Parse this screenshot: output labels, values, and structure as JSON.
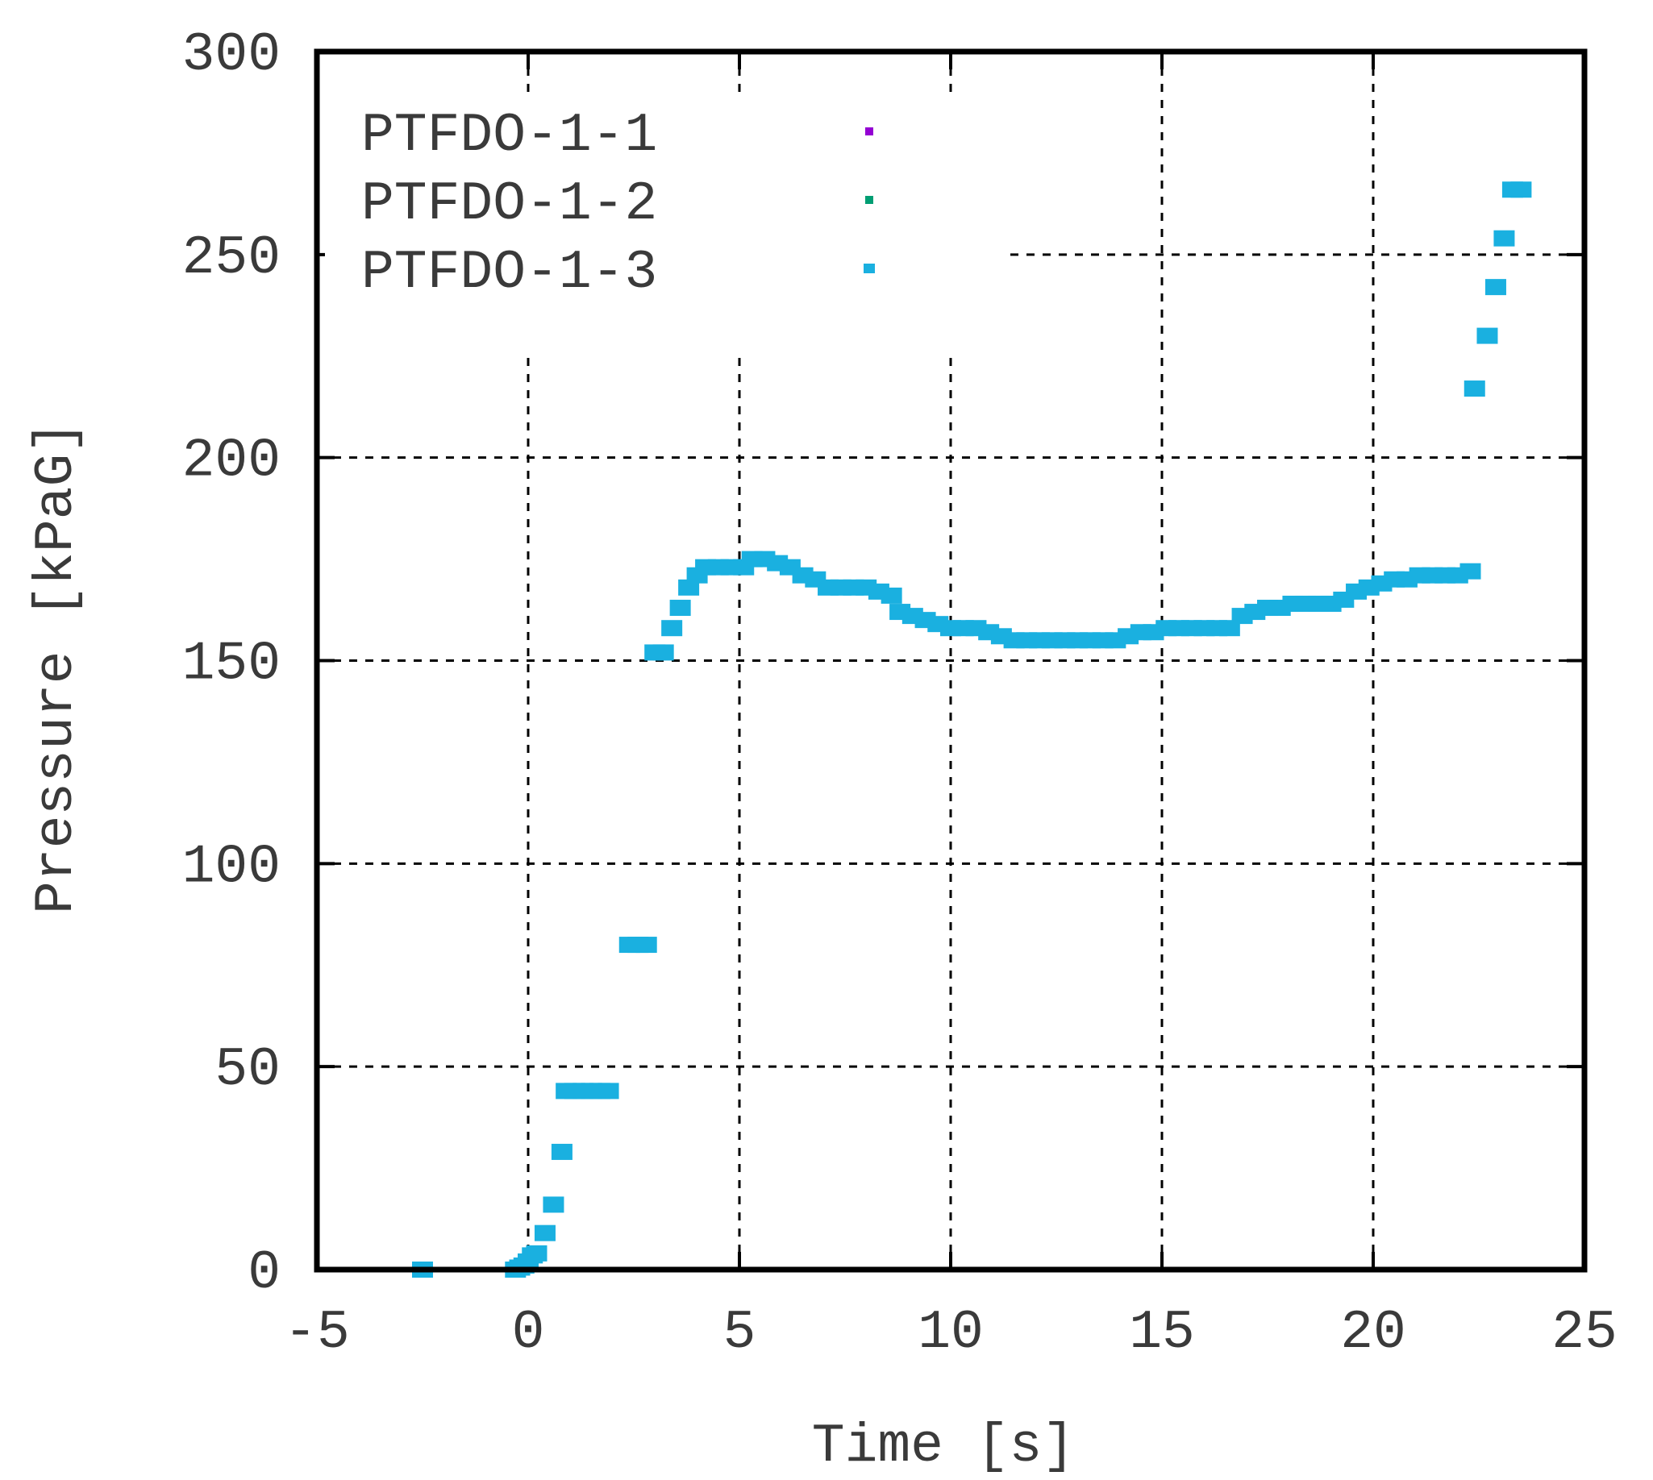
{
  "chart_data": {
    "type": "scatter",
    "title": "",
    "xlabel": "Time [s]",
    "ylabel": "Pressure [kPaG]",
    "xlim": [
      -5,
      25
    ],
    "ylim": [
      0,
      300
    ],
    "xticks": [
      -5,
      0,
      5,
      10,
      15,
      20,
      25
    ],
    "yticks": [
      0,
      50,
      100,
      150,
      200,
      250,
      300
    ],
    "xtick_labels": [
      "-5",
      "0",
      "5",
      "10",
      "15",
      "20",
      "25"
    ],
    "ytick_labels": [
      "0",
      "50",
      "100",
      "150",
      "200",
      "250",
      "300"
    ],
    "grid": true,
    "legend_position": "top-left",
    "series": [
      {
        "name": "PTFDO-1-1",
        "color": "#9400d3",
        "marker": "dot",
        "points": []
      },
      {
        "name": "PTFDO-1-2",
        "color": "#009e73",
        "marker": "dot",
        "points": []
      },
      {
        "name": "PTFDO-1-3",
        "color": "#1ab0e0",
        "marker": "square",
        "points": [
          [
            -2.5,
            0
          ],
          [
            -0.3,
            0
          ],
          [
            -0.2,
            0.5
          ],
          [
            -0.1,
            1
          ],
          [
            0.0,
            2
          ],
          [
            0.1,
            3.5
          ],
          [
            0.2,
            4
          ],
          [
            0.4,
            9
          ],
          [
            0.6,
            16
          ],
          [
            0.8,
            29
          ],
          [
            0.9,
            44
          ],
          [
            1.1,
            44
          ],
          [
            1.3,
            44
          ],
          [
            1.5,
            44
          ],
          [
            1.7,
            44
          ],
          [
            1.9,
            44
          ],
          [
            2.4,
            80
          ],
          [
            2.6,
            80
          ],
          [
            2.8,
            80
          ],
          [
            3.0,
            152
          ],
          [
            3.2,
            152
          ],
          [
            3.4,
            158
          ],
          [
            3.6,
            163
          ],
          [
            3.8,
            168
          ],
          [
            4.0,
            171
          ],
          [
            4.2,
            173
          ],
          [
            4.5,
            173
          ],
          [
            4.8,
            173
          ],
          [
            5.1,
            173
          ],
          [
            5.3,
            175
          ],
          [
            5.6,
            175
          ],
          [
            5.9,
            174
          ],
          [
            6.2,
            173
          ],
          [
            6.5,
            171
          ],
          [
            6.8,
            170
          ],
          [
            7.1,
            168
          ],
          [
            7.4,
            168
          ],
          [
            7.7,
            168
          ],
          [
            8.0,
            168
          ],
          [
            8.3,
            167
          ],
          [
            8.6,
            166
          ],
          [
            8.8,
            162
          ],
          [
            9.1,
            161
          ],
          [
            9.4,
            160
          ],
          [
            9.7,
            159
          ],
          [
            10.0,
            158
          ],
          [
            10.3,
            158
          ],
          [
            10.6,
            158
          ],
          [
            10.9,
            157
          ],
          [
            11.2,
            156
          ],
          [
            11.5,
            155
          ],
          [
            11.8,
            155
          ],
          [
            12.1,
            155
          ],
          [
            12.4,
            155
          ],
          [
            12.7,
            155
          ],
          [
            13.0,
            155
          ],
          [
            13.3,
            155
          ],
          [
            13.6,
            155
          ],
          [
            13.9,
            155
          ],
          [
            14.2,
            156
          ],
          [
            14.5,
            157
          ],
          [
            14.8,
            157
          ],
          [
            15.1,
            158
          ],
          [
            15.4,
            158
          ],
          [
            15.7,
            158
          ],
          [
            16.0,
            158
          ],
          [
            16.3,
            158
          ],
          [
            16.6,
            158
          ],
          [
            16.9,
            161
          ],
          [
            17.2,
            162
          ],
          [
            17.5,
            163
          ],
          [
            17.8,
            163
          ],
          [
            18.1,
            164
          ],
          [
            18.4,
            164
          ],
          [
            18.7,
            164
          ],
          [
            19.0,
            164
          ],
          [
            19.3,
            165
          ],
          [
            19.6,
            167
          ],
          [
            19.9,
            168
          ],
          [
            20.2,
            169
          ],
          [
            20.5,
            170
          ],
          [
            20.8,
            170
          ],
          [
            21.1,
            171
          ],
          [
            21.4,
            171
          ],
          [
            21.7,
            171
          ],
          [
            22.0,
            171
          ],
          [
            22.3,
            172
          ],
          [
            22.4,
            217
          ],
          [
            22.7,
            230
          ],
          [
            22.9,
            242
          ],
          [
            23.1,
            254
          ],
          [
            23.3,
            266
          ],
          [
            23.5,
            266
          ]
        ]
      }
    ]
  }
}
